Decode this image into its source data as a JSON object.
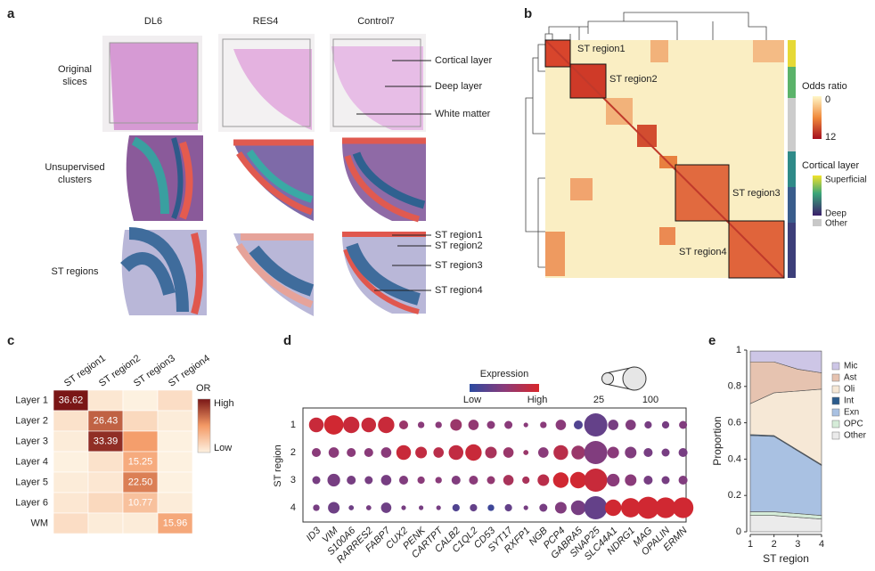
{
  "figure": {
    "letters": [
      "a",
      "b",
      "c",
      "d",
      "e"
    ],
    "panel_a": {
      "columns": [
        "DL6",
        "RES4",
        "Control7"
      ],
      "rows": [
        [
          "Original",
          "slices"
        ],
        [
          "Unsupervised",
          "clusters"
        ],
        [
          "ST regions"
        ]
      ],
      "annotations_original": [
        "Cortical layer",
        "Deep layer",
        "White matter"
      ],
      "annotations_regions": [
        "ST region1",
        "ST region2",
        "ST region3",
        "ST region4"
      ]
    },
    "panel_b": {
      "block_labels": [
        "ST region1",
        "ST region2",
        "ST region3",
        "ST region4"
      ],
      "odds_ratio_label": "Odds ratio",
      "odds_ratio_ticks": [
        0,
        12
      ],
      "cortical_label": "Cortical layer",
      "cortical_ticks": [
        "Superficial",
        "Deep",
        "Other"
      ]
    }
  },
  "chart_data": [
    {
      "type": "heatmap",
      "columns": [
        "ST region1",
        "ST region2",
        "ST region3",
        "ST region4"
      ],
      "rows": [
        "Layer 1",
        "Layer 2",
        "Layer 3",
        "Layer 4",
        "Layer 5",
        "Layer 6",
        "WM"
      ],
      "values": [
        [
          36.62,
          3,
          1,
          5
        ],
        [
          4,
          26.43,
          6,
          2
        ],
        [
          2,
          33.39,
          18,
          1
        ],
        [
          1,
          4,
          15.25,
          1
        ],
        [
          2,
          3,
          22.5,
          1
        ],
        [
          3,
          6,
          10.77,
          2
        ],
        [
          5,
          2,
          2,
          15.96
        ]
      ],
      "value_labels": [
        [
          "36.62",
          null,
          null,
          null
        ],
        [
          null,
          "26.43",
          null,
          null
        ],
        [
          null,
          "33.39",
          null,
          null
        ],
        [
          null,
          null,
          "15.25",
          null
        ],
        [
          null,
          null,
          "22.50",
          null
        ],
        [
          null,
          null,
          "10.77",
          null
        ],
        [
          null,
          null,
          null,
          "15.96"
        ]
      ],
      "colors": [
        "#fdf1e0",
        "#f49a66",
        "#7a1616"
      ],
      "colorbar_label": "OR",
      "colorbar_ticks": [
        "High",
        "Low"
      ]
    },
    {
      "type": "dotplot",
      "y_label": "ST region",
      "categories": [
        "ID3",
        "VIM",
        "S100A6",
        "RARRES2",
        "FABP7",
        "CUX2",
        "PENK",
        "CARTPT",
        "CALB2",
        "C1QL2",
        "CD53",
        "SYT17",
        "RXFP1",
        "NGB",
        "PCP4",
        "GABRA5",
        "SNAP25",
        "SLC44A1",
        "NDRG1",
        "MAG",
        "OPALIN",
        "ERMN"
      ],
      "series": [
        {
          "name": "1",
          "sizes": [
            40,
            70,
            50,
            40,
            50,
            15,
            8,
            8,
            25,
            20,
            12,
            12,
            4,
            8,
            20,
            15,
            100,
            20,
            20,
            10,
            10,
            12
          ],
          "expression": [
            0.9,
            0.95,
            0.9,
            0.9,
            0.9,
            0.6,
            0.5,
            0.5,
            0.6,
            0.55,
            0.5,
            0.5,
            0.5,
            0.5,
            0.5,
            0.2,
            0.3,
            0.4,
            0.45,
            0.4,
            0.4,
            0.45
          ]
        },
        {
          "name": "2",
          "sizes": [
            15,
            20,
            15,
            15,
            20,
            40,
            25,
            20,
            40,
            50,
            25,
            20,
            5,
            20,
            40,
            35,
            100,
            25,
            25,
            15,
            12,
            15
          ],
          "expression": [
            0.5,
            0.5,
            0.5,
            0.5,
            0.5,
            0.9,
            0.85,
            0.8,
            0.85,
            0.9,
            0.7,
            0.6,
            0.6,
            0.5,
            0.8,
            0.6,
            0.45,
            0.5,
            0.45,
            0.4,
            0.4,
            0.4
          ]
        },
        {
          "name": "3",
          "sizes": [
            12,
            30,
            15,
            12,
            20,
            15,
            10,
            8,
            15,
            15,
            12,
            20,
            10,
            25,
            45,
            50,
            100,
            30,
            25,
            15,
            12,
            15
          ],
          "expression": [
            0.4,
            0.4,
            0.4,
            0.4,
            0.4,
            0.45,
            0.5,
            0.5,
            0.45,
            0.5,
            0.55,
            0.7,
            0.7,
            0.8,
            0.95,
            0.95,
            0.9,
            0.5,
            0.5,
            0.4,
            0.4,
            0.45
          ]
        },
        {
          "name": "4",
          "sizes": [
            8,
            25,
            5,
            5,
            20,
            4,
            4,
            4,
            10,
            10,
            8,
            10,
            4,
            12,
            25,
            40,
            100,
            50,
            70,
            90,
            80,
            80
          ],
          "expression": [
            0.4,
            0.35,
            0.35,
            0.4,
            0.35,
            0.4,
            0.4,
            0.4,
            0.2,
            0.3,
            0.1,
            0.3,
            0.4,
            0.4,
            0.45,
            0.4,
            0.3,
            0.95,
            0.95,
            0.95,
            0.95,
            0.95
          ]
        }
      ],
      "colors": [
        "#2b4aa0",
        "#8a3b7a",
        "#d8262a"
      ],
      "color_legend": {
        "title": "Expression",
        "ticks": [
          "Low",
          "High"
        ]
      },
      "size_legend": [
        25,
        100
      ]
    },
    {
      "type": "stacked_area",
      "x": [
        1,
        2,
        3,
        4
      ],
      "xlim": [
        1,
        4
      ],
      "xticks": [
        1,
        2,
        3,
        4
      ],
      "ylim": [
        0,
        1
      ],
      "yticks": [
        0,
        0.2,
        0.4,
        0.6,
        0.8,
        1
      ],
      "x_label": "ST region",
      "y_label": "Proportion",
      "series": [
        {
          "name": "Other",
          "color": "#ebebeb",
          "values": [
            0.09,
            0.09,
            0.08,
            0.07
          ]
        },
        {
          "name": "OPC",
          "color": "#d5ecd8",
          "values": [
            0.02,
            0.02,
            0.02,
            0.02
          ]
        },
        {
          "name": "Exn",
          "color": "#a9c1e2",
          "values": [
            0.42,
            0.415,
            0.345,
            0.275
          ]
        },
        {
          "name": "Int",
          "color": "#2c5b8c",
          "values": [
            0.005,
            0.005,
            0.005,
            0.005
          ]
        },
        {
          "name": "Oli",
          "color": "#f6e8d6",
          "values": [
            0.17,
            0.235,
            0.325,
            0.415
          ]
        },
        {
          "name": "Ast",
          "color": "#e6c3b0",
          "values": [
            0.23,
            0.17,
            0.12,
            0.09
          ]
        },
        {
          "name": "Mic",
          "color": "#cdc6e6",
          "values": [
            0.06,
            0.06,
            0.1,
            0.12
          ]
        }
      ]
    }
  ]
}
